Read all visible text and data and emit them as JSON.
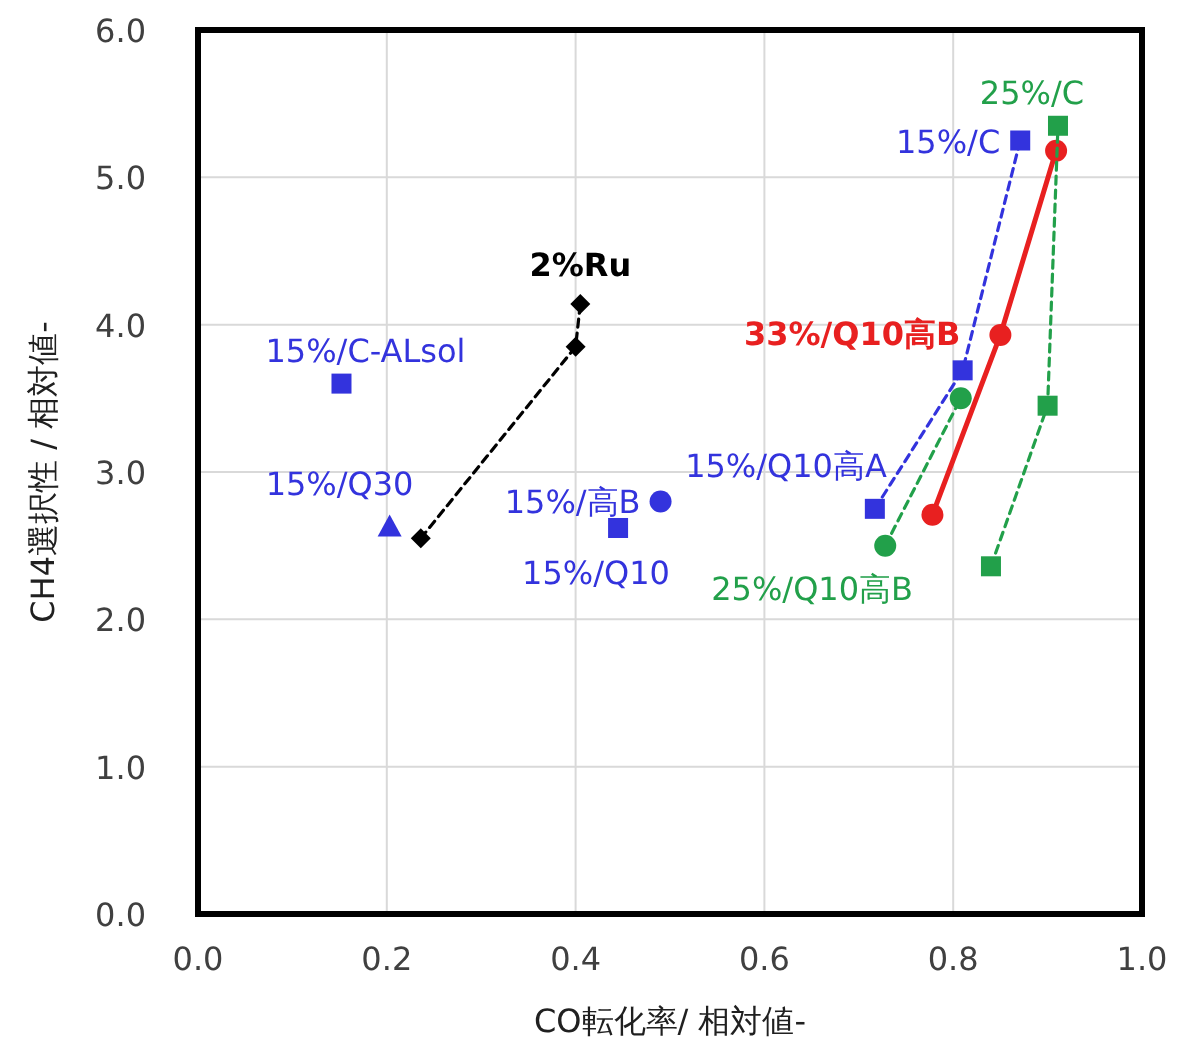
{
  "chart_data": {
    "type": "scatter",
    "xlabel": "CO転化率/ 相対値-",
    "ylabel": "CH4選択性 / 相対値-",
    "xlim": [
      0,
      1
    ],
    "ylim": [
      0,
      6
    ],
    "xticks": [
      {
        "value": 0,
        "label": "0.0"
      },
      {
        "value": 0.2,
        "label": "0.2"
      },
      {
        "value": 0.4,
        "label": "0.4"
      },
      {
        "value": 0.6,
        "label": "0.6"
      },
      {
        "value": 0.8,
        "label": "0.8"
      },
      {
        "value": 1,
        "label": "1.0"
      }
    ],
    "yticks": [
      {
        "value": 0,
        "label": "0.0"
      },
      {
        "value": 1,
        "label": "1.0"
      },
      {
        "value": 2,
        "label": "2.0"
      },
      {
        "value": 3,
        "label": "3.0"
      },
      {
        "value": 4,
        "label": "4.0"
      },
      {
        "value": 5,
        "label": "5.0"
      },
      {
        "value": 6,
        "label": "6.0"
      }
    ],
    "grid": true,
    "series": [
      {
        "name": "2%Ru",
        "type": "line",
        "color": "#000000",
        "marker": "diamond",
        "line_style": "dashed",
        "x": [
          0.236,
          0.4,
          0.405
        ],
        "values": [
          2.55,
          3.85,
          4.14
        ]
      },
      {
        "name": "15%/C-ALsol",
        "type": "scatter",
        "color": "#3333dd",
        "marker": "square",
        "x": [
          0.152
        ],
        "values": [
          3.6
        ]
      },
      {
        "name": "15%/Q30",
        "type": "scatter",
        "color": "#3333dd",
        "marker": "triangle",
        "x": [
          0.203
        ],
        "values": [
          2.63
        ]
      },
      {
        "name": "15%/Q10",
        "type": "scatter",
        "color": "#3333dd",
        "marker": "square",
        "x": [
          0.445
        ],
        "values": [
          2.62
        ]
      },
      {
        "name": "15%/高B",
        "type": "scatter",
        "color": "#3333dd",
        "marker": "circle",
        "x": [
          0.49
        ],
        "values": [
          2.8
        ]
      },
      {
        "name": "15%/Q10高A",
        "type": "line",
        "color": "#3333dd",
        "marker": "square",
        "line_style": "dashed",
        "x": [
          0.717,
          0.81,
          0.871
        ],
        "values": [
          2.75,
          3.69,
          5.25
        ]
      },
      {
        "name": "33%/Q10高B",
        "type": "line",
        "color": "#e82020",
        "marker": "circle",
        "line_style": "solid",
        "x": [
          0.778,
          0.85,
          0.909
        ],
        "values": [
          2.71,
          3.93,
          5.18
        ]
      },
      {
        "name": "25%/Q10高B",
        "type": "line",
        "color": "#22a04a",
        "marker": "circle",
        "line_style": "dashed",
        "x": [
          0.728,
          0.808
        ],
        "values": [
          2.5,
          3.5
        ]
      },
      {
        "type": "line",
        "color": "#22a04a",
        "marker": "square",
        "line_style": "dashed",
        "x": [
          0.84,
          0.9,
          0.911
        ],
        "values": [
          2.36,
          3.45,
          5.35
        ]
      }
    ],
    "annotations": [
      {
        "text": "15%/C",
        "x": 0.871,
        "y": 5.25
      },
      {
        "text": "25%/C",
        "x": 0.911,
        "y": 5.35
      }
    ]
  }
}
